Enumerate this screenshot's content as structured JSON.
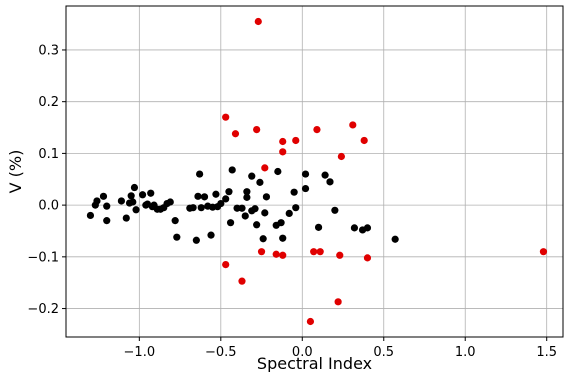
{
  "chart_data": {
    "type": "scatter",
    "title": "",
    "xlabel": "Spectral Index",
    "ylabel": "V (%)",
    "xlim": [
      -1.45,
      1.6
    ],
    "ylim": [
      -0.255,
      0.385
    ],
    "grid": true,
    "x_ticks": [
      {
        "value": -1.0,
        "label": "−1.0"
      },
      {
        "value": -0.5,
        "label": "−0.5"
      },
      {
        "value": 0.0,
        "label": "0.0"
      },
      {
        "value": 0.5,
        "label": "0.5"
      },
      {
        "value": 1.0,
        "label": "1.0"
      },
      {
        "value": 1.5,
        "label": "1.5"
      }
    ],
    "y_ticks": [
      {
        "value": -0.2,
        "label": "−0.2"
      },
      {
        "value": -0.1,
        "label": "−0.1"
      },
      {
        "value": 0.0,
        "label": "0.0"
      },
      {
        "value": 0.1,
        "label": "0.1"
      },
      {
        "value": 0.2,
        "label": "0.2"
      },
      {
        "value": 0.3,
        "label": "0.3"
      }
    ],
    "series": [
      {
        "color": "#000000",
        "points": [
          [
            -1.3,
            -0.02
          ],
          [
            -1.27,
            0.0
          ],
          [
            -1.26,
            0.008
          ],
          [
            -1.22,
            0.017
          ],
          [
            -1.2,
            -0.002
          ],
          [
            -1.2,
            -0.03
          ],
          [
            -1.11,
            0.008
          ],
          [
            -1.08,
            -0.025
          ],
          [
            -1.06,
            0.004
          ],
          [
            -1.05,
            0.018
          ],
          [
            -1.04,
            0.006
          ],
          [
            -1.03,
            0.034
          ],
          [
            -1.02,
            -0.009
          ],
          [
            -0.98,
            0.02
          ],
          [
            -0.96,
            0.0
          ],
          [
            -0.95,
            0.002
          ],
          [
            -0.93,
            0.023
          ],
          [
            -0.92,
            -0.003
          ],
          [
            -0.91,
            0.0
          ],
          [
            -0.89,
            -0.008
          ],
          [
            -0.87,
            -0.008
          ],
          [
            -0.85,
            -0.005
          ],
          [
            -0.83,
            0.003
          ],
          [
            -0.81,
            0.006
          ],
          [
            -0.78,
            -0.03
          ],
          [
            -0.77,
            -0.062
          ],
          [
            -0.69,
            -0.006
          ],
          [
            -0.67,
            -0.005
          ],
          [
            -0.65,
            -0.068
          ],
          [
            -0.64,
            0.017
          ],
          [
            -0.63,
            0.06
          ],
          [
            -0.62,
            -0.005
          ],
          [
            -0.6,
            0.016
          ],
          [
            -0.58,
            -0.002
          ],
          [
            -0.56,
            -0.058
          ],
          [
            -0.55,
            -0.004
          ],
          [
            -0.53,
            0.021
          ],
          [
            -0.52,
            -0.003
          ],
          [
            -0.5,
            0.003
          ],
          [
            -0.47,
            0.012
          ],
          [
            -0.45,
            0.026
          ],
          [
            -0.44,
            -0.034
          ],
          [
            -0.43,
            0.068
          ],
          [
            -0.4,
            -0.006
          ],
          [
            -0.37,
            -0.006
          ],
          [
            -0.35,
            -0.021
          ],
          [
            -0.34,
            0.015
          ],
          [
            -0.34,
            0.026
          ],
          [
            -0.31,
            -0.011
          ],
          [
            -0.31,
            0.056
          ],
          [
            -0.29,
            -0.007
          ],
          [
            -0.28,
            -0.038
          ],
          [
            -0.26,
            0.044
          ],
          [
            -0.24,
            -0.065
          ],
          [
            -0.23,
            -0.015
          ],
          [
            -0.22,
            0.016
          ],
          [
            -0.16,
            -0.039
          ],
          [
            -0.15,
            0.065
          ],
          [
            -0.13,
            -0.034
          ],
          [
            -0.12,
            -0.064
          ],
          [
            -0.08,
            -0.016
          ],
          [
            -0.05,
            0.025
          ],
          [
            -0.04,
            -0.005
          ],
          [
            0.02,
            0.06
          ],
          [
            0.02,
            0.032
          ],
          [
            0.1,
            -0.043
          ],
          [
            0.14,
            0.058
          ],
          [
            0.17,
            0.045
          ],
          [
            0.2,
            -0.01
          ],
          [
            0.32,
            -0.044
          ],
          [
            0.37,
            -0.048
          ],
          [
            0.4,
            -0.044
          ],
          [
            0.57,
            -0.066
          ]
        ]
      },
      {
        "color": "#e00000",
        "points": [
          [
            -0.27,
            0.355
          ],
          [
            -0.47,
            0.17
          ],
          [
            -0.41,
            0.138
          ],
          [
            -0.28,
            0.146
          ],
          [
            -0.12,
            0.123
          ],
          [
            -0.04,
            0.125
          ],
          [
            -0.12,
            0.103
          ],
          [
            0.09,
            0.146
          ],
          [
            0.31,
            0.155
          ],
          [
            0.38,
            0.125
          ],
          [
            0.24,
            0.094
          ],
          [
            -0.23,
            0.072
          ],
          [
            -0.47,
            -0.115
          ],
          [
            -0.37,
            -0.147
          ],
          [
            -0.25,
            -0.09
          ],
          [
            -0.16,
            -0.095
          ],
          [
            -0.12,
            -0.097
          ],
          [
            0.07,
            -0.09
          ],
          [
            0.11,
            -0.09
          ],
          [
            0.23,
            -0.097
          ],
          [
            0.4,
            -0.102
          ],
          [
            0.22,
            -0.187
          ],
          [
            0.05,
            -0.225
          ],
          [
            1.48,
            -0.09
          ]
        ]
      }
    ]
  }
}
